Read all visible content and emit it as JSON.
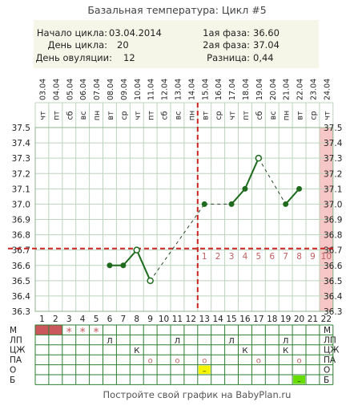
{
  "chart_data": {
    "type": "line",
    "title": "Базальная температура: Цикл #5",
    "info": {
      "start_label": "Начало цикла:",
      "start_value": "03.04.2014",
      "day_label": "День цикла:",
      "day_value": "20",
      "ovulation_label": "День овуляции:",
      "ovulation_value": "12",
      "phase1_label": "1ая фаза:",
      "phase1_value": "36.60",
      "phase2_label": "2ая фаза:",
      "phase2_value": "37.04",
      "diff_label": "Разница:",
      "diff_value": "0,44"
    },
    "dates": [
      "03.04",
      "04.04",
      "05.04",
      "06.04",
      "07.04",
      "08.04",
      "09.04",
      "10.04",
      "11.04",
      "12.04",
      "13.04",
      "14.04",
      "15.04",
      "16.04",
      "17.04",
      "18.04",
      "19.04",
      "20.04",
      "21.04",
      "22.04",
      "23.04",
      "24.04"
    ],
    "weekdays": [
      "чт",
      "пт",
      "сб",
      "вс",
      "пн",
      "вт",
      "ср",
      "чт",
      "пт",
      "сб",
      "вс",
      "пн",
      "вт",
      "ср",
      "чт",
      "пт",
      "сб",
      "вс",
      "пн",
      "вт",
      "ср",
      "чт"
    ],
    "days": [
      "1",
      "2",
      "3",
      "4",
      "5",
      "6",
      "7",
      "8",
      "9",
      "10",
      "11",
      "12",
      "13",
      "14",
      "15",
      "16",
      "17",
      "18",
      "19",
      "20",
      "21",
      "22"
    ],
    "yticks": [
      "37.5",
      "37.4",
      "37.3",
      "37.2",
      "37.1",
      "37.0",
      "36.9",
      "36.8",
      "36.7",
      "36.6",
      "36.5",
      "36.4",
      "36.3"
    ],
    "ylim": [
      36.3,
      37.5
    ],
    "series": [
      {
        "values": [
          null,
          null,
          null,
          null,
          null,
          36.6,
          36.6,
          36.7,
          36.5,
          null,
          null,
          null,
          37.0,
          null,
          37.0,
          37.1,
          37.3,
          null,
          37.0,
          37.1,
          null,
          null
        ],
        "color": "#1e6b1e"
      }
    ],
    "circled_days": [
      8,
      9,
      17
    ],
    "coverline": 36.71,
    "coverline_color": "#cc2222",
    "ovulation_day": 12,
    "post_ovulation_numbers": [
      "1",
      "2",
      "3",
      "4",
      "5",
      "6",
      "7",
      "8",
      "9",
      "10"
    ],
    "today_day": 22,
    "today_color": "#f7c6c6",
    "rows": {
      "labels": [
        "М",
        "ЛП",
        "ЦЖ",
        "ПА",
        "О",
        "Б"
      ],
      "m_filled_days": [
        1,
        2
      ],
      "m_star_days": [
        3,
        4,
        5
      ],
      "m_color": "#c9575b",
      "lp_days": [
        6,
        11,
        15,
        19
      ],
      "lp_mark": "Л",
      "czh_days": [
        8,
        16,
        19
      ],
      "czh_mark": "К",
      "pa_days": [
        9,
        11,
        13,
        17,
        20
      ],
      "pa_mark": "о",
      "o_days": [
        13
      ],
      "o_mark": "–",
      "o_color": "#f5f500",
      "b_days": [
        20
      ],
      "b_mark": "–",
      "b_color": "#66dd00"
    },
    "footer": "Постройте свой график на BabyPlan.ru",
    "grid": true
  }
}
